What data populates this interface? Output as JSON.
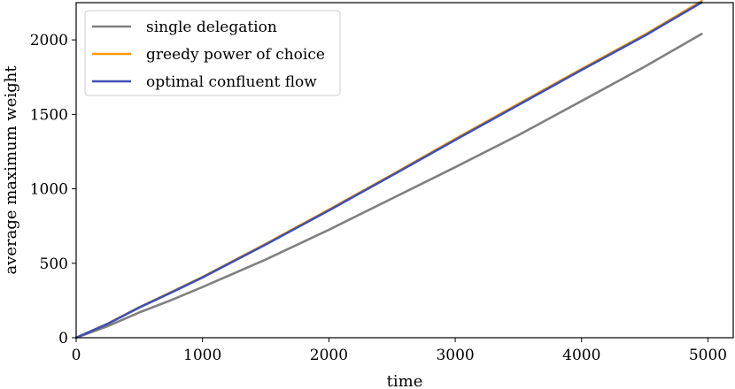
{
  "chart_data": {
    "type": "line",
    "title": "",
    "xlabel": "time",
    "ylabel": "average maximum weight",
    "xlim": [
      0,
      5200
    ],
    "ylim": [
      0,
      2250
    ],
    "xticks": [
      0,
      1000,
      2000,
      3000,
      4000,
      5000
    ],
    "yticks": [
      0,
      500,
      1000,
      1500,
      2000
    ],
    "grid": false,
    "legend_position": "top-left",
    "series": [
      {
        "name": "single delegation",
        "color": "#808080",
        "x": [
          0,
          250,
          500,
          750,
          1000,
          1500,
          2000,
          2500,
          3000,
          3500,
          4000,
          4500,
          4950
        ],
        "y": [
          0,
          78,
          170,
          252,
          340,
          525,
          725,
          935,
          1145,
          1360,
          1590,
          1820,
          2040
        ]
      },
      {
        "name": "greedy power of choice",
        "color": "#ff9a00",
        "x": [
          0,
          250,
          500,
          750,
          1000,
          1500,
          2000,
          2500,
          3000,
          3500,
          4000,
          4500,
          4950
        ],
        "y": [
          0,
          95,
          205,
          305,
          408,
          630,
          860,
          1095,
          1335,
          1570,
          1805,
          2035,
          2260
        ]
      },
      {
        "name": "optimal confluent flow",
        "color": "#3f4fb3",
        "x": [
          0,
          250,
          500,
          750,
          1000,
          1500,
          2000,
          2500,
          3000,
          3500,
          4000,
          4500,
          4950
        ],
        "y": [
          0,
          93,
          203,
          302,
          405,
          626,
          855,
          1090,
          1328,
          1563,
          1798,
          2028,
          2252
        ]
      }
    ]
  }
}
